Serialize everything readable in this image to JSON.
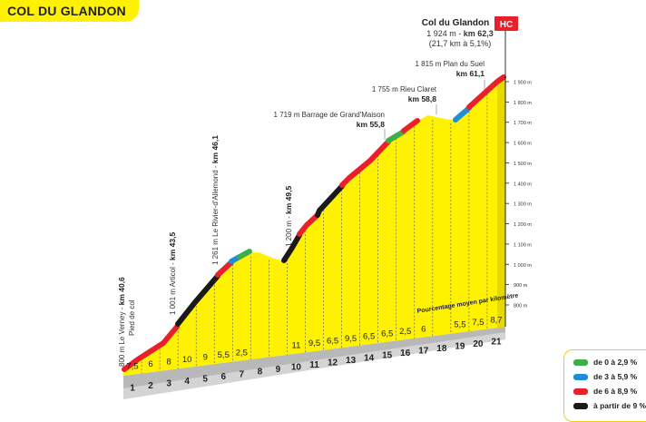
{
  "title": "COL DU GLANDON",
  "summit": {
    "name": "Col du Glandon",
    "details": "1 924 m - ",
    "km": "km 62,3",
    "stats": "(21,7 km à 5,1%)",
    "category": "HC"
  },
  "waypoints": {
    "start_alt": "800 m Le Verney - ",
    "start_km": "km 40,6",
    "start_sub": "Pied de col",
    "articol_alt": "1 001 m Articol - ",
    "articol_km": "km 43,5",
    "rivier_alt": "1 261 m Le Rivier-d'Allemond - ",
    "rivier_km": "km 46,1",
    "km495_alt": "1 200 m - ",
    "km495_km": "km 49,5",
    "barrage_label": "1 719 m Barrage de Grand'Maison",
    "barrage_km": "km 55,8",
    "rieu_label": "1 755 m Rieu Claret",
    "rieu_km": "km 58,8",
    "plan_label": "1 815 m Plan du Suel",
    "plan_km": "km 61,1"
  },
  "chart_note": "Pourcentage moyen par kilomètre",
  "y_axis": [
    "1 900 m",
    "1 800 m",
    "1 700 m",
    "1 600 m",
    "1 500 m",
    "1 400 m",
    "1 300 m",
    "1 200 m",
    "1 100 m",
    "1 000 m",
    "900 m",
    "800 m"
  ],
  "km_markers": [
    "1",
    "2",
    "3",
    "4",
    "5",
    "6",
    "7",
    "8",
    "9",
    "10",
    "11",
    "12",
    "13",
    "14",
    "15",
    "16",
    "17",
    "18",
    "19",
    "20",
    "21"
  ],
  "gradients": [
    "7,5",
    "6",
    "8",
    "10",
    "9",
    "5,5",
    "2,5",
    "",
    "",
    "11",
    "9,5",
    "6,5",
    "9,5",
    "6,5",
    "6,5",
    "2,5",
    "6",
    "",
    "5,5",
    "7,5",
    "8,7"
  ],
  "legend": [
    {
      "label": "de 0 à 2,9 %",
      "color": "#3fae49"
    },
    {
      "label": "de 3 à 5,9 %",
      "color": "#1e8fd6"
    },
    {
      "label": "de 6 à 8,9 %",
      "color": "#e8202a"
    },
    {
      "label": "à partir de 9 %",
      "color": "#1a1a1a"
    }
  ]
}
